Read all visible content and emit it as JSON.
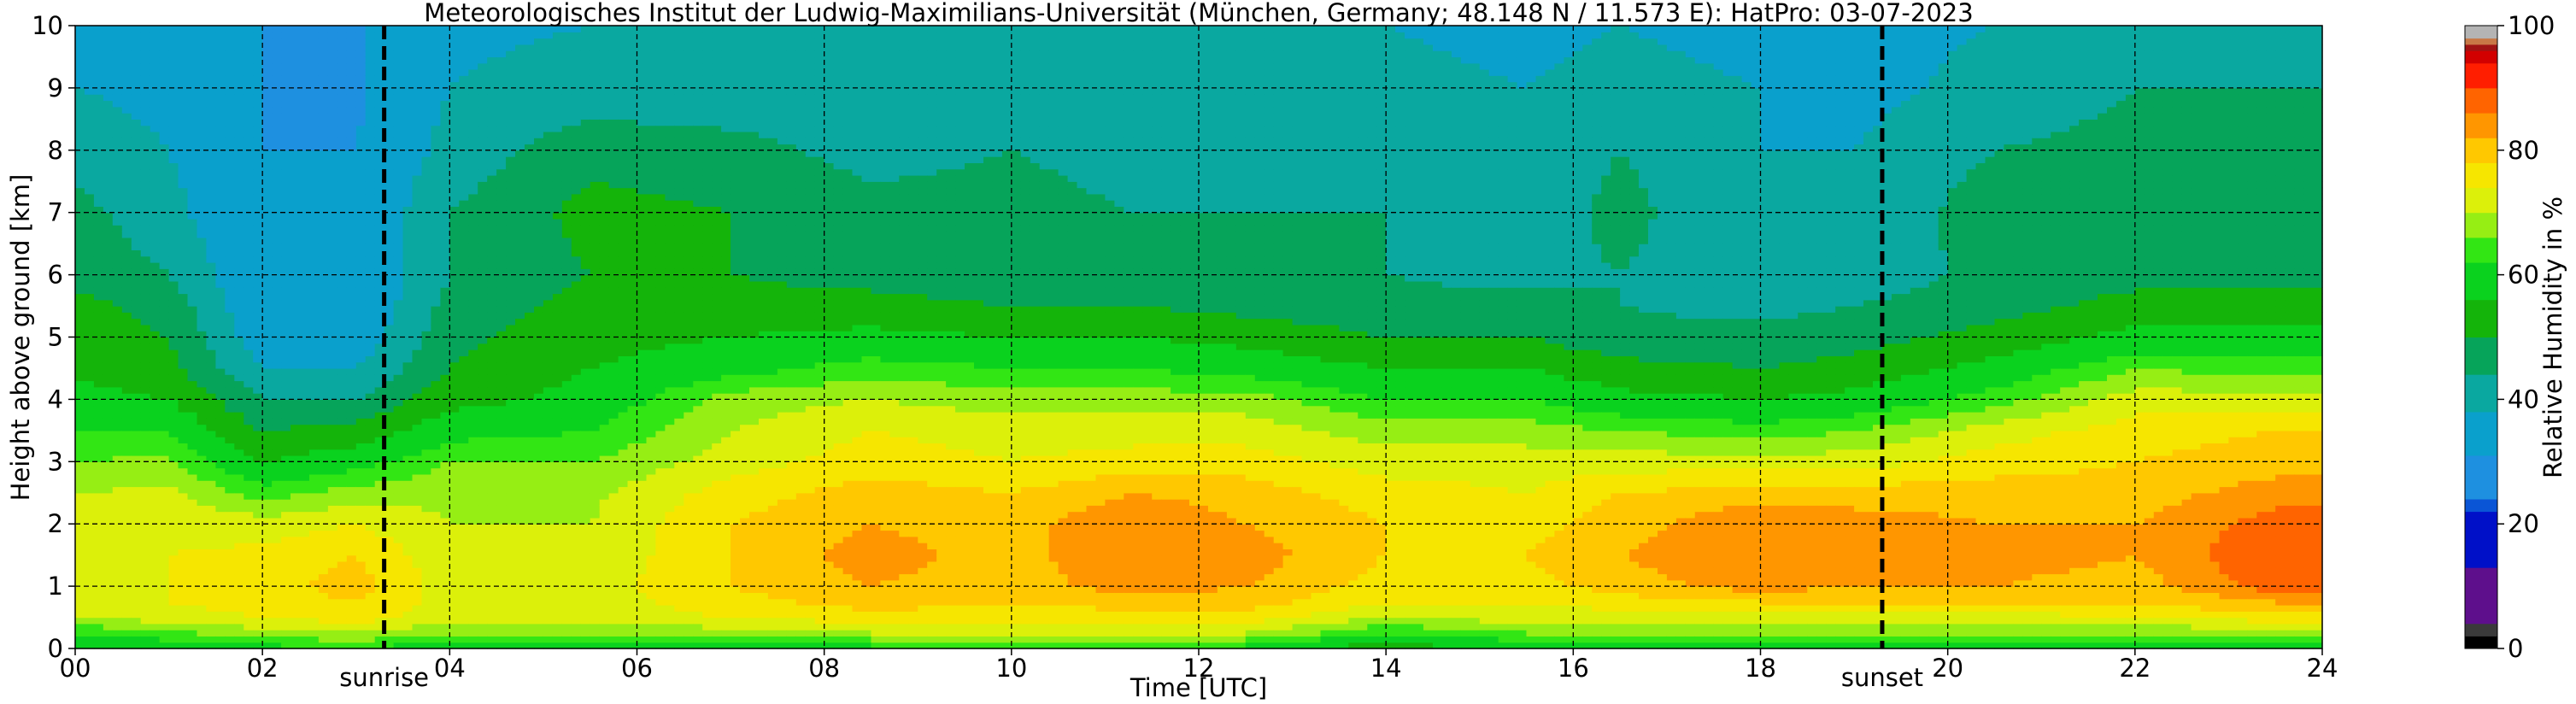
{
  "chart_data": {
    "type": "heatmap",
    "title": "Meteorologisches Institut der Ludwig-Maximilians-Universität (München, Germany; 48.148 N / 11.573 E):    HatPro: 03-07-2023",
    "xlabel": "Time [UTC]",
    "ylabel": "Height above ground [km]",
    "colorbar_label": "Relative Humidity in %",
    "xlim": [
      0,
      24
    ],
    "ylim": [
      0,
      10
    ],
    "x_ticks": [
      0,
      2,
      4,
      6,
      8,
      10,
      12,
      14,
      16,
      18,
      20,
      22,
      24
    ],
    "x_tick_labels": [
      "00",
      "02",
      "04",
      "06",
      "08",
      "10",
      "12",
      "14",
      "16",
      "18",
      "20",
      "22",
      "24"
    ],
    "y_ticks": [
      0,
      1,
      2,
      3,
      4,
      5,
      6,
      7,
      8,
      9,
      10
    ],
    "y_tick_labels": [
      "0",
      "1",
      "2",
      "3",
      "4",
      "5",
      "6",
      "7",
      "8",
      "9",
      "10"
    ],
    "grid": true,
    "colorbar": {
      "range": [
        0,
        100
      ],
      "ticks": [
        0,
        20,
        40,
        60,
        80,
        100
      ],
      "tick_labels": [
        "0",
        "20",
        "40",
        "60",
        "80",
        "100"
      ],
      "levels": [
        {
          "from": 0,
          "to": 2,
          "color": "#000000"
        },
        {
          "from": 2,
          "to": 4,
          "color": "#3a3a3a"
        },
        {
          "from": 4,
          "to": 13,
          "color": "#5e0f8c"
        },
        {
          "from": 13,
          "to": 22,
          "color": "#0010c8"
        },
        {
          "from": 22,
          "to": 24,
          "color": "#0a55d6"
        },
        {
          "from": 24,
          "to": 31,
          "color": "#1e90e0"
        },
        {
          "from": 31,
          "to": 38,
          "color": "#0aa0cc"
        },
        {
          "from": 38,
          "to": 44,
          "color": "#0aa8a0"
        },
        {
          "from": 44,
          "to": 50,
          "color": "#06a45a"
        },
        {
          "from": 50,
          "to": 56,
          "color": "#14b40a"
        },
        {
          "from": 56,
          "to": 62,
          "color": "#0ad21e"
        },
        {
          "from": 62,
          "to": 66,
          "color": "#32e614"
        },
        {
          "from": 66,
          "to": 70,
          "color": "#96ee14"
        },
        {
          "from": 70,
          "to": 74,
          "color": "#dcf00a"
        },
        {
          "from": 74,
          "to": 78,
          "color": "#f6e600"
        },
        {
          "from": 78,
          "to": 82,
          "color": "#ffc800"
        },
        {
          "from": 82,
          "to": 86,
          "color": "#ff9600"
        },
        {
          "from": 86,
          "to": 90,
          "color": "#ff6400"
        },
        {
          "from": 90,
          "to": 94,
          "color": "#ff1e00"
        },
        {
          "from": 94,
          "to": 96,
          "color": "#d20000"
        },
        {
          "from": 96,
          "to": 97,
          "color": "#a01414"
        },
        {
          "from": 97,
          "to": 98,
          "color": "#c87846"
        },
        {
          "from": 98,
          "to": 100,
          "color": "#b4b4b4"
        }
      ]
    },
    "events": [
      {
        "label": "sunrise",
        "time": 3.3
      },
      {
        "label": "sunset",
        "time": 19.3
      }
    ],
    "profile_heights_km": [
      0,
      0.25,
      0.5,
      0.75,
      1,
      1.5,
      2,
      2.5,
      3,
      3.5,
      4,
      4.5,
      5,
      5.5,
      6,
      7,
      8,
      9,
      10
    ],
    "profiles": [
      {
        "time": 0.0,
        "rh": [
          55,
          62,
          70,
          72,
          72,
          72,
          71,
          70,
          66,
          62,
          58,
          55,
          53,
          52,
          48,
          46,
          42,
          38,
          36
        ]
      },
      {
        "time": 1.0,
        "rh": [
          58,
          65,
          72,
          74,
          74,
          74,
          73,
          71,
          67,
          62,
          56,
          52,
          50,
          48,
          44,
          40,
          38,
          36,
          35
        ]
      },
      {
        "time": 2.0,
        "rh": [
          60,
          68,
          74,
          76,
          76,
          75,
          72,
          64,
          56,
          50,
          44,
          38,
          34,
          32,
          32,
          31,
          31,
          31,
          31
        ]
      },
      {
        "time": 3.0,
        "rh": [
          62,
          70,
          76,
          78,
          80,
          78,
          74,
          68,
          60,
          52,
          44,
          38,
          34,
          32,
          31,
          31,
          31,
          30,
          30
        ]
      },
      {
        "time": 4.0,
        "rh": [
          58,
          66,
          72,
          72,
          72,
          71,
          70,
          69,
          66,
          60,
          54,
          50,
          48,
          46,
          44,
          44,
          40,
          38,
          37
        ]
      },
      {
        "time": 5.5,
        "rh": [
          58,
          66,
          72,
          72,
          72,
          71,
          70,
          69,
          66,
          62,
          58,
          56,
          54,
          52,
          50,
          52,
          48,
          40,
          38
        ]
      },
      {
        "time": 7.0,
        "rh": [
          60,
          68,
          74,
          76,
          78,
          78,
          78,
          76,
          72,
          70,
          68,
          60,
          56,
          52,
          50,
          50,
          46,
          40,
          38
        ]
      },
      {
        "time": 8.5,
        "rh": [
          60,
          70,
          76,
          80,
          82,
          84,
          82,
          80,
          76,
          74,
          70,
          64,
          58,
          52,
          48,
          46,
          42,
          40,
          38
        ]
      },
      {
        "time": 10.0,
        "rh": [
          60,
          70,
          76,
          78,
          80,
          80,
          80,
          78,
          74,
          72,
          68,
          62,
          56,
          50,
          46,
          46,
          44,
          40,
          38
        ]
      },
      {
        "time": 11.3,
        "rh": [
          60,
          70,
          76,
          80,
          84,
          86,
          86,
          82,
          76,
          72,
          68,
          62,
          56,
          50,
          46,
          44,
          42,
          40,
          38
        ]
      },
      {
        "time": 12.5,
        "rh": [
          60,
          70,
          76,
          80,
          82,
          84,
          82,
          80,
          76,
          72,
          68,
          60,
          54,
          48,
          44,
          44,
          42,
          40,
          38
        ]
      },
      {
        "time": 14.0,
        "rh": [
          52,
          62,
          70,
          74,
          76,
          78,
          78,
          76,
          72,
          68,
          62,
          56,
          50,
          46,
          44,
          44,
          42,
          40,
          38
        ]
      },
      {
        "time": 15.5,
        "rh": [
          58,
          66,
          72,
          74,
          76,
          78,
          76,
          74,
          72,
          68,
          62,
          56,
          50,
          46,
          42,
          40,
          40,
          38,
          36
        ]
      },
      {
        "time": 16.5,
        "rh": [
          58,
          66,
          72,
          76,
          80,
          82,
          80,
          78,
          72,
          66,
          58,
          52,
          46,
          44,
          44,
          46,
          44,
          40,
          38
        ]
      },
      {
        "time": 18.0,
        "rh": [
          58,
          66,
          72,
          78,
          84,
          86,
          86,
          80,
          72,
          64,
          56,
          50,
          46,
          42,
          40,
          38,
          38,
          38,
          36
        ]
      },
      {
        "time": 19.0,
        "rh": [
          58,
          66,
          72,
          78,
          82,
          84,
          84,
          80,
          72,
          66,
          58,
          52,
          48,
          44,
          40,
          38,
          38,
          36,
          36
        ]
      },
      {
        "time": 20.5,
        "rh": [
          58,
          66,
          72,
          78,
          82,
          84,
          82,
          80,
          76,
          72,
          64,
          58,
          52,
          48,
          46,
          48,
          44,
          40,
          38
        ]
      },
      {
        "time": 22.0,
        "rh": [
          58,
          66,
          74,
          78,
          80,
          82,
          82,
          80,
          78,
          76,
          72,
          66,
          58,
          52,
          48,
          48,
          46,
          44,
          40
        ]
      },
      {
        "time": 23.5,
        "rh": [
          58,
          68,
          76,
          82,
          88,
          90,
          88,
          84,
          80,
          78,
          72,
          64,
          58,
          52,
          48,
          46,
          46,
          44,
          40
        ]
      },
      {
        "time": 24.0,
        "rh": [
          58,
          68,
          76,
          82,
          88,
          90,
          88,
          84,
          80,
          78,
          72,
          64,
          58,
          52,
          48,
          46,
          46,
          44,
          40
        ]
      }
    ]
  }
}
